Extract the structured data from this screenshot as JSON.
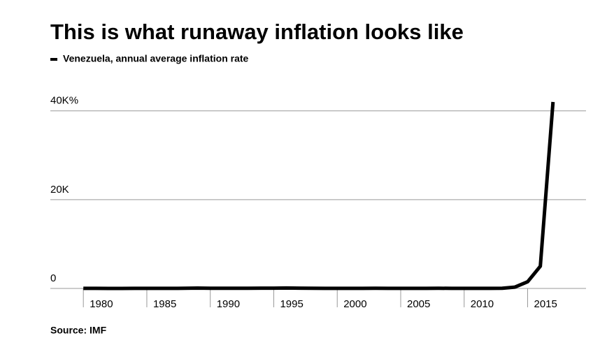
{
  "chart_data": {
    "type": "line",
    "title": "This is what runaway inflation looks like",
    "x": [
      1980,
      1981,
      1982,
      1983,
      1984,
      1985,
      1986,
      1987,
      1988,
      1989,
      1990,
      1991,
      1992,
      1993,
      1994,
      1995,
      1996,
      1997,
      1998,
      1999,
      2000,
      2001,
      2002,
      2003,
      2004,
      2005,
      2006,
      2007,
      2008,
      2009,
      2010,
      2011,
      2012,
      2013,
      2014,
      2015,
      2016,
      2017
    ],
    "series": [
      {
        "name": "Venezuela, annual average inflation rate",
        "color": "#000000",
        "values": [
          21.5,
          16,
          9.7,
          6.3,
          12.2,
          11.4,
          11.5,
          28.1,
          29.5,
          84.5,
          40.7,
          34.2,
          31.4,
          38.1,
          60.8,
          59.9,
          99.9,
          50,
          35.8,
          23.6,
          16.2,
          12.5,
          22.4,
          31.1,
          21.7,
          16,
          13.7,
          18.7,
          31.4,
          27.1,
          28.2,
          26.1,
          21.1,
          40.6,
          300,
          1500,
          5000,
          42000
        ]
      }
    ],
    "xlim": [
      1977.4,
      2019.6
    ],
    "xticks": [
      1980,
      1985,
      1990,
      1995,
      2000,
      2005,
      2010,
      2015
    ],
    "ylim": [
      0,
      42000
    ],
    "yticks": [
      0,
      {
        "value": 20000,
        "label": "20K"
      },
      {
        "value": 40000,
        "label": "40K%"
      }
    ],
    "grid": true,
    "source": "Source: IMF"
  }
}
